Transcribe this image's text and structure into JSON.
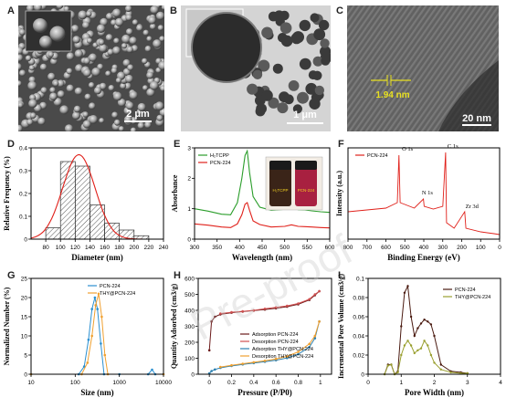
{
  "panel_labels": [
    "A",
    "B",
    "C",
    "D",
    "E",
    "F",
    "G",
    "H",
    "I"
  ],
  "micrographs": {
    "A": {
      "scale": "2 μm"
    },
    "B": {
      "scale": "1 μm"
    },
    "C": {
      "scale": "20 nm",
      "annotation": "1.94 nm"
    }
  },
  "watermark": "Pre-proof",
  "chart_data": [
    {
      "id": "D",
      "type": "bar",
      "xlabel": "Diameter (nm)",
      "ylabel": "Relative Frequency (%)",
      "xlim": [
        60,
        240
      ],
      "ylim": [
        0,
        0.4
      ],
      "xticks": [
        80,
        100,
        120,
        140,
        160,
        180,
        200,
        220,
        240
      ],
      "yticks": [
        0.0,
        0.1,
        0.2,
        0.3,
        0.4
      ],
      "bins": [
        {
          "x0": 80,
          "x1": 100,
          "value": 0.05
        },
        {
          "x0": 100,
          "x1": 120,
          "value": 0.34
        },
        {
          "x0": 120,
          "x1": 140,
          "value": 0.32
        },
        {
          "x0": 140,
          "x1": 160,
          "value": 0.15
        },
        {
          "x0": 160,
          "x1": 180,
          "value": 0.07
        },
        {
          "x0": 180,
          "x1": 200,
          "value": 0.04
        },
        {
          "x0": 200,
          "x1": 220,
          "value": 0.015
        }
      ],
      "fit": {
        "mu": 125,
        "sigma": 22,
        "peak": 0.37
      }
    },
    {
      "id": "E",
      "type": "line",
      "xlabel": "Wavelength (nm)",
      "ylabel": "Absorbance",
      "xlim": [
        300,
        600
      ],
      "ylim": [
        0,
        3
      ],
      "xticks": [
        300,
        350,
        400,
        450,
        500,
        550,
        600
      ],
      "yticks": [
        0,
        1,
        2,
        3
      ],
      "vial_labels": [
        "H₂TCPP",
        "PCN-224"
      ],
      "series": [
        {
          "name": "H₂TCPP",
          "color": "#2a9d2a",
          "x": [
            300,
            330,
            360,
            380,
            395,
            405,
            412,
            417,
            422,
            430,
            445,
            470,
            500,
            515,
            530,
            545,
            560,
            580,
            600
          ],
          "y": [
            1.0,
            0.92,
            0.82,
            0.8,
            1.2,
            2.0,
            2.75,
            2.9,
            2.2,
            1.4,
            1.05,
            0.95,
            0.98,
            1.04,
            0.97,
            0.96,
            0.93,
            0.9,
            0.88
          ]
        },
        {
          "name": "PCN-224",
          "color": "#e0201a",
          "x": [
            300,
            330,
            360,
            380,
            395,
            405,
            412,
            417,
            422,
            430,
            445,
            470,
            500,
            515,
            530,
            545,
            560,
            580,
            600
          ],
          "y": [
            0.5,
            0.46,
            0.4,
            0.38,
            0.5,
            0.8,
            1.15,
            1.2,
            0.95,
            0.6,
            0.48,
            0.4,
            0.42,
            0.47,
            0.42,
            0.41,
            0.4,
            0.38,
            0.37
          ]
        }
      ]
    },
    {
      "id": "F",
      "type": "line",
      "xlabel": "Binding Energy (eV)",
      "ylabel": "Intensity (a.u.)",
      "xlim": [
        800,
        0
      ],
      "xticks": [
        800,
        700,
        600,
        500,
        400,
        300,
        200,
        100,
        0
      ],
      "series": [
        {
          "name": "PCN-224",
          "color": "#e0201a",
          "x": [
            800,
            700,
            600,
            540,
            531,
            525,
            450,
            402,
            398,
            350,
            300,
            285,
            280,
            240,
            184,
            178,
            100,
            30,
            0
          ],
          "y": [
            0.3,
            0.32,
            0.34,
            0.4,
            0.92,
            0.4,
            0.34,
            0.44,
            0.36,
            0.33,
            0.36,
            0.95,
            0.18,
            0.12,
            0.3,
            0.12,
            0.08,
            0.06,
            0.05
          ]
        }
      ],
      "annotations": [
        "O 1s",
        "C 1s",
        "N 1s",
        "Zr 3d"
      ]
    },
    {
      "id": "G",
      "type": "line",
      "xlabel": "Size (nm)",
      "ylabel": "Normalized Number (%)",
      "xscale": "log",
      "xlim": [
        10,
        10000
      ],
      "ylim": [
        0,
        25
      ],
      "xticks": [
        10,
        100,
        1000,
        10000
      ],
      "yticks": [
        0,
        5,
        10,
        15,
        20,
        25
      ],
      "series": [
        {
          "name": "PCN-224",
          "color": "#2a8fd0",
          "x": [
            10,
            120,
            160,
            200,
            240,
            280,
            320,
            380,
            450,
            1000,
            4500,
            5500,
            6500,
            10000
          ],
          "y": [
            0,
            0,
            2,
            9,
            17,
            20,
            17,
            8,
            0,
            0,
            0,
            1.2,
            0,
            0
          ]
        },
        {
          "name": "THY@PCN-224",
          "color": "#f0a030",
          "x": [
            10,
            140,
            190,
            240,
            290,
            340,
            400,
            470,
            550,
            10000
          ],
          "y": [
            0,
            0,
            3,
            10,
            18,
            21,
            15,
            5,
            0,
            0
          ]
        }
      ]
    },
    {
      "id": "H",
      "type": "line",
      "xlabel": "Pressure (P/P0)",
      "ylabel": "Quantity Adsorbed (cm3/g)",
      "xlim": [
        -0.1,
        1.1
      ],
      "ylim": [
        0,
        600
      ],
      "xticks": [
        0.0,
        0.2,
        0.4,
        0.6,
        0.8,
        1.0
      ],
      "yticks": [
        0,
        100,
        200,
        300,
        400,
        500,
        600
      ],
      "series": [
        {
          "name": "Adsorption PCN-224",
          "color": "#6b1a1a",
          "x": [
            0.0,
            0.02,
            0.05,
            0.1,
            0.2,
            0.3,
            0.4,
            0.5,
            0.6,
            0.7,
            0.8,
            0.9,
            0.95,
            0.99
          ],
          "y": [
            150,
            330,
            360,
            375,
            385,
            392,
            398,
            405,
            413,
            423,
            438,
            465,
            495,
            520
          ]
        },
        {
          "name": "Desorption PCN-224",
          "color": "#d05050",
          "x": [
            0.99,
            0.95,
            0.9,
            0.8,
            0.7,
            0.6,
            0.5,
            0.4,
            0.3,
            0.2,
            0.1
          ],
          "y": [
            520,
            500,
            470,
            443,
            428,
            418,
            410,
            400,
            394,
            388,
            380
          ]
        },
        {
          "name": "Adsorption THY@PCN-224",
          "color": "#2a7fb0",
          "x": [
            0.0,
            0.02,
            0.05,
            0.1,
            0.2,
            0.3,
            0.4,
            0.5,
            0.6,
            0.7,
            0.8,
            0.9,
            0.95,
            0.99
          ],
          "y": [
            5,
            20,
            30,
            40,
            52,
            62,
            70,
            78,
            88,
            102,
            125,
            170,
            225,
            330
          ]
        },
        {
          "name": "Desorption THY@PCN-224",
          "color": "#f0a030",
          "x": [
            0.99,
            0.95,
            0.9,
            0.8,
            0.7,
            0.6,
            0.5,
            0.4,
            0.3,
            0.2,
            0.1
          ],
          "y": [
            330,
            240,
            190,
            140,
            112,
            96,
            84,
            75,
            66,
            56,
            45
          ]
        }
      ]
    },
    {
      "id": "I",
      "type": "line",
      "xlabel": "Pore Width (nm)",
      "ylabel": "Incremental Pore Volume (cm3/g)",
      "xlim": [
        0,
        4
      ],
      "ylim": [
        0,
        0.1
      ],
      "xticks": [
        0,
        1,
        2,
        3,
        4
      ],
      "yticks": [
        0.0,
        0.02,
        0.04,
        0.06,
        0.08,
        0.1
      ],
      "series": [
        {
          "name": "PCN-224",
          "color": "#4a1a10",
          "x": [
            0.5,
            0.6,
            0.7,
            0.8,
            0.9,
            1.0,
            1.1,
            1.2,
            1.3,
            1.4,
            1.5,
            1.6,
            1.7,
            1.8,
            1.9,
            2.0,
            2.2,
            2.5,
            2.8,
            3.0
          ],
          "y": [
            0.0,
            0.01,
            0.01,
            0.0,
            0.003,
            0.05,
            0.085,
            0.092,
            0.06,
            0.04,
            0.048,
            0.053,
            0.057,
            0.055,
            0.052,
            0.04,
            0.01,
            0.003,
            0.002,
            0.001
          ]
        },
        {
          "name": "THY@PCN-224",
          "color": "#9aa030",
          "x": [
            0.5,
            0.6,
            0.7,
            0.8,
            0.9,
            1.0,
            1.1,
            1.2,
            1.3,
            1.4,
            1.5,
            1.6,
            1.7,
            1.8,
            1.9,
            2.0,
            2.2,
            2.5,
            2.8,
            3.0
          ],
          "y": [
            0.0,
            0.009,
            0.01,
            0.0,
            0.002,
            0.02,
            0.03,
            0.035,
            0.03,
            0.022,
            0.025,
            0.027,
            0.035,
            0.03,
            0.02,
            0.012,
            0.005,
            0.002,
            0.001,
            0.001
          ]
        }
      ]
    }
  ]
}
